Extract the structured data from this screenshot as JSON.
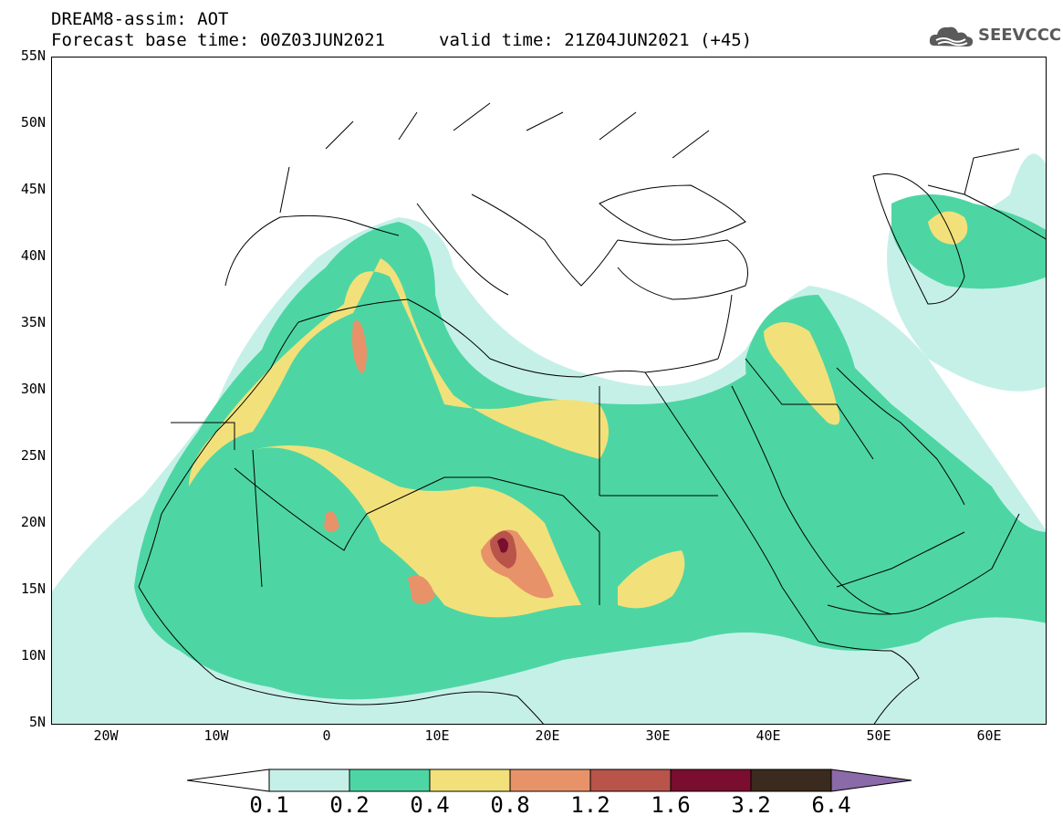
{
  "header": {
    "title_line1": "DREAM8-assim: AOT",
    "forecast_base": "Forecast base time: 00Z03JUN2021",
    "valid_time": "valid time: 21Z04JUN2021 (+45)"
  },
  "logo": {
    "text": "SEEVCCC",
    "icon": "cloud-icon"
  },
  "map": {
    "lat_ticks": [
      "55N",
      "50N",
      "45N",
      "40N",
      "35N",
      "30N",
      "25N",
      "20N",
      "15N",
      "10N",
      "5N"
    ],
    "lon_ticks": [
      "20W",
      "10W",
      "0",
      "10E",
      "20E",
      "30E",
      "40E",
      "50E",
      "60E"
    ],
    "lon_range": [
      -25,
      65
    ],
    "lat_range": [
      5,
      55
    ]
  },
  "colorbar": {
    "labels": [
      "0.1",
      "0.2",
      "0.4",
      "0.8",
      "1.2",
      "1.6",
      "3.2",
      "6.4"
    ],
    "colors": [
      "#ffffff",
      "#c5f0e8",
      "#4dd6a3",
      "#f2e17a",
      "#e8926a",
      "#b8544a",
      "#7a0d30",
      "#3b2a1e",
      "#8a6aa8"
    ]
  }
}
